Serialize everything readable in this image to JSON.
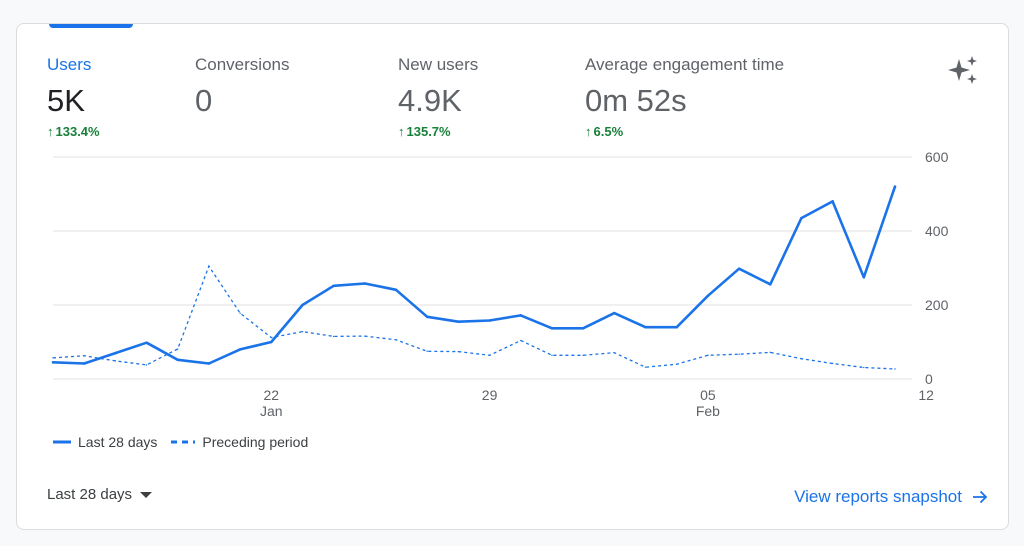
{
  "metrics": [
    {
      "label": "Users",
      "value": "5K",
      "change": "133.4%",
      "active": true
    },
    {
      "label": "Conversions",
      "value": "0",
      "change": "",
      "active": false
    },
    {
      "label": "New users",
      "value": "4.9K",
      "change": "135.7%",
      "active": false
    },
    {
      "label": "Average engagement time",
      "value": "0m 52s",
      "change": "6.5%",
      "active": false
    }
  ],
  "chart_data": {
    "type": "line",
    "title": "",
    "xlabel": "",
    "ylabel": "",
    "ylim": [
      0,
      600
    ],
    "y_ticks": [
      0,
      200,
      400,
      600
    ],
    "x_tick_labels": [
      {
        "day_index": 7,
        "line1": "22",
        "line2": "Jan"
      },
      {
        "day_index": 14,
        "line1": "29",
        "line2": ""
      },
      {
        "day_index": 21,
        "line1": "05",
        "line2": "Feb"
      },
      {
        "day_index": 28,
        "line1": "12",
        "line2": ""
      }
    ],
    "series": [
      {
        "name": "Last 28 days",
        "style": "solid",
        "color": "#1a73e8",
        "values": [
          45,
          42,
          70,
          98,
          52,
          42,
          80,
          100,
          200,
          252,
          258,
          241,
          168,
          155,
          158,
          172,
          137,
          137,
          178,
          140,
          140,
          225,
          298,
          256,
          435,
          480,
          275,
          520
        ]
      },
      {
        "name": "Preceding period",
        "style": "dashed",
        "color": "#1a73e8",
        "values": [
          57,
          63,
          49,
          38,
          81,
          305,
          178,
          112,
          128,
          115,
          116,
          106,
          75,
          74,
          64,
          104,
          64,
          64,
          71,
          32,
          40,
          64,
          67,
          72,
          55,
          42,
          31,
          27
        ]
      }
    ]
  },
  "legend": {
    "current": "Last 28 days",
    "previous": "Preceding period"
  },
  "footer": {
    "range_label": "Last 28 days",
    "view_link": "View reports snapshot"
  }
}
